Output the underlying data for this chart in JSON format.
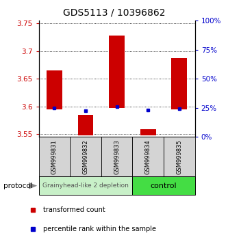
{
  "title": "GDS5113 / 10396862",
  "samples": [
    "GSM999831",
    "GSM999832",
    "GSM999833",
    "GSM999834",
    "GSM999835"
  ],
  "bar_tops": [
    3.665,
    3.585,
    3.728,
    3.558,
    3.687
  ],
  "bar_bottoms": [
    3.595,
    3.548,
    3.597,
    3.548,
    3.595
  ],
  "blue_dots": [
    3.597,
    3.592,
    3.6,
    3.593,
    3.596
  ],
  "ylim": [
    3.545,
    3.755
  ],
  "yticks": [
    3.55,
    3.6,
    3.65,
    3.7,
    3.75
  ],
  "ytick_labels": [
    "3.55",
    "3.6",
    "3.65",
    "3.7",
    "3.75"
  ],
  "right_yticks": [
    0,
    25,
    50,
    75,
    100
  ],
  "group1_count": 3,
  "group1_label": "Grainyhead-like 2 depletion",
  "group2_label": "control",
  "group1_color": "#c8f0c8",
  "group2_color": "#44dd44",
  "protocol_label": "protocol",
  "legend_red_label": "transformed count",
  "legend_blue_label": "percentile rank within the sample",
  "bar_color": "#cc0000",
  "dot_color": "#0000cc",
  "bar_width": 0.5,
  "left_tick_color": "#cc0000",
  "right_tick_color": "#0000cc",
  "title_fontsize": 10,
  "tick_fontsize": 7.5,
  "sample_fontsize": 6,
  "legend_fontsize": 7,
  "group_label_fontsize": 6.5,
  "control_fontsize": 8
}
